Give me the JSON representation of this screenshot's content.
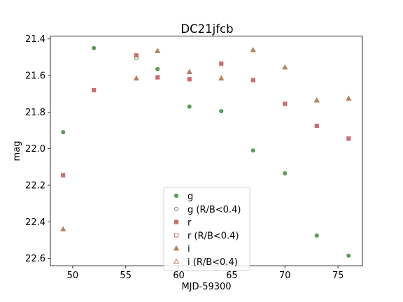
{
  "chart_data": {
    "type": "scatter",
    "title": "DC21jfcb",
    "xlabel": "MJD-59300",
    "ylabel": "mag",
    "xlim": [
      47.9,
      77.3
    ],
    "ylim": [
      22.64,
      21.385
    ],
    "y_inverted": true,
    "grid": false,
    "legend_placement": "lower center",
    "x_ticks": [
      50,
      55,
      60,
      65,
      70,
      75
    ],
    "x_tick_labels": [
      "50",
      "55",
      "60",
      "65",
      "70",
      "75"
    ],
    "y_ticks": [
      21.4,
      21.6,
      21.8,
      22.0,
      22.2,
      22.4,
      22.6
    ],
    "y_tick_labels": [
      "21.4",
      "21.6",
      "21.8",
      "22.0",
      "22.2",
      "22.4",
      "22.6"
    ],
    "series": [
      {
        "name": "g",
        "marker": "circle",
        "filled": true,
        "color": "#5a9e5a",
        "points": [
          [
            49.1,
            21.91
          ],
          [
            52.0,
            21.45
          ],
          [
            58.0,
            21.565
          ],
          [
            61.0,
            21.77
          ],
          [
            64.0,
            21.795
          ],
          [
            67.0,
            22.01
          ],
          [
            70.0,
            22.135
          ],
          [
            73.0,
            22.475
          ],
          [
            76.0,
            22.585
          ]
        ]
      },
      {
        "name": "g (R/B<0.4)",
        "marker": "circle",
        "filled": false,
        "color": "#5a9e5a",
        "points": [
          [
            56.0,
            21.505
          ]
        ]
      },
      {
        "name": "r",
        "marker": "square",
        "filled": true,
        "color": "#cc6f6f",
        "points": [
          [
            49.1,
            22.145
          ],
          [
            52.0,
            21.68
          ],
          [
            56.0,
            21.49
          ],
          [
            58.0,
            21.61
          ],
          [
            61.0,
            21.62
          ],
          [
            64.0,
            21.535
          ],
          [
            67.0,
            21.625
          ],
          [
            70.0,
            21.755
          ],
          [
            73.0,
            21.875
          ],
          [
            76.0,
            21.945
          ]
        ]
      },
      {
        "name": "r (R/B<0.4)",
        "marker": "square",
        "filled": false,
        "color": "#cc6f6f",
        "points": []
      },
      {
        "name": "i",
        "marker": "triangle",
        "filled": true,
        "color": "#b5815e",
        "points": [
          [
            49.1,
            22.44
          ],
          [
            56.0,
            21.615
          ],
          [
            58.0,
            21.465
          ],
          [
            61.0,
            21.58
          ],
          [
            64.0,
            21.615
          ],
          [
            67.0,
            21.46
          ],
          [
            70.0,
            21.555
          ],
          [
            73.0,
            21.735
          ],
          [
            76.0,
            21.725
          ]
        ]
      },
      {
        "name": "i (R/B<0.4)",
        "marker": "triangle",
        "filled": false,
        "color": "#b5815e",
        "points": []
      }
    ]
  }
}
